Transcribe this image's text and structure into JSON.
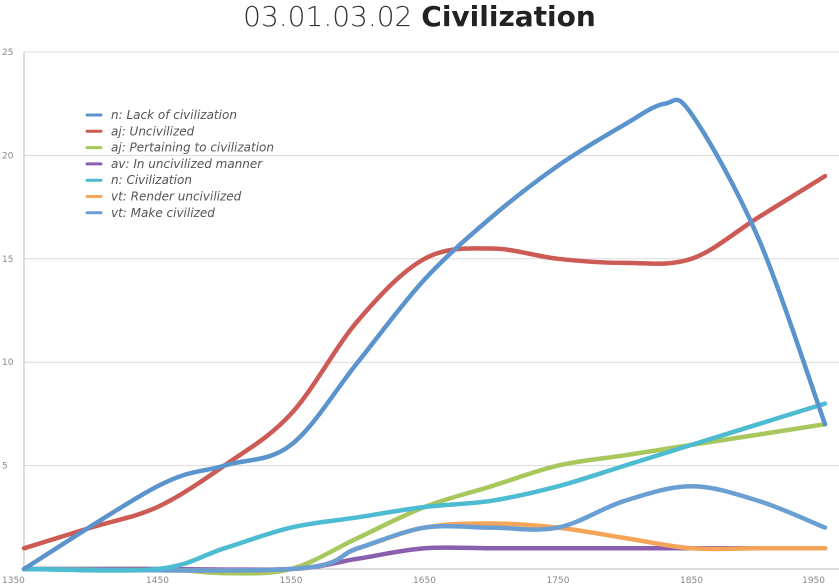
{
  "title": {
    "code": "03.01.03.02",
    "name": "Civilization"
  },
  "chart_data": {
    "type": "line",
    "title": "03.01.03.02 Civilization",
    "xlabel": "",
    "ylabel": "",
    "xlim": [
      1350,
      1950
    ],
    "ylim": [
      0,
      25
    ],
    "x_ticks": [
      1350,
      1450,
      1550,
      1650,
      1750,
      1850,
      1950
    ],
    "y_ticks": [
      5,
      10,
      15,
      20,
      25
    ],
    "grid": "horizontal",
    "legend_position": "top-left",
    "series": [
      {
        "name": "n: Lack of civilization",
        "color": "#5b93cc",
        "x": [
          1350,
          1450,
          1500,
          1550,
          1600,
          1650,
          1700,
          1750,
          1800,
          1830,
          1850,
          1900,
          1950
        ],
        "y": [
          0,
          4,
          5,
          6,
          10,
          14,
          17,
          19.5,
          21.5,
          22.5,
          22,
          16,
          7
        ]
      },
      {
        "name": "aj: Uncivilized",
        "color": "#cc5a55",
        "x": [
          1350,
          1400,
          1450,
          1500,
          1550,
          1600,
          1650,
          1700,
          1750,
          1800,
          1850,
          1900,
          1950
        ],
        "y": [
          1,
          2,
          3,
          5,
          7.5,
          12,
          15,
          15.5,
          15,
          14.8,
          15,
          17,
          19
        ]
      },
      {
        "name": "aj: Pertaining to civilization",
        "color": "#a8c85e",
        "x": [
          1350,
          1450,
          1500,
          1550,
          1600,
          1650,
          1700,
          1750,
          1800,
          1850,
          1900,
          1950
        ],
        "y": [
          0,
          0,
          -0.2,
          0,
          1.5,
          3,
          4,
          5,
          5.5,
          6,
          6.5,
          7
        ]
      },
      {
        "name": "av: In uncivilized manner",
        "color": "#8b5fb0",
        "x": [
          1350,
          1450,
          1550,
          1600,
          1650,
          1700,
          1750,
          1850,
          1950
        ],
        "y": [
          0,
          0,
          0,
          0.5,
          1,
          1,
          1,
          1,
          1
        ]
      },
      {
        "name": "n: Civilization",
        "color": "#4dbbd1",
        "x": [
          1350,
          1450,
          1500,
          1550,
          1600,
          1650,
          1700,
          1750,
          1800,
          1850,
          1900,
          1950
        ],
        "y": [
          0,
          0,
          1,
          2,
          2.5,
          3,
          3.3,
          4,
          5,
          6,
          7,
          8
        ]
      },
      {
        "name": "vt: Render uncivilized",
        "color": "#f5a55a",
        "x": [
          1350,
          1550,
          1600,
          1650,
          1700,
          1750,
          1800,
          1850,
          1900,
          1950
        ],
        "y": [
          0,
          0,
          1,
          2,
          2.2,
          2,
          1.5,
          1,
          1,
          1
        ]
      },
      {
        "name": "vt: Make civilized",
        "color": "#6a9fd4",
        "x": [
          1350,
          1550,
          1600,
          1650,
          1700,
          1750,
          1800,
          1850,
          1900,
          1950
        ],
        "y": [
          0,
          0,
          1,
          2,
          2,
          2,
          3.3,
          4,
          3.3,
          2
        ]
      }
    ]
  }
}
